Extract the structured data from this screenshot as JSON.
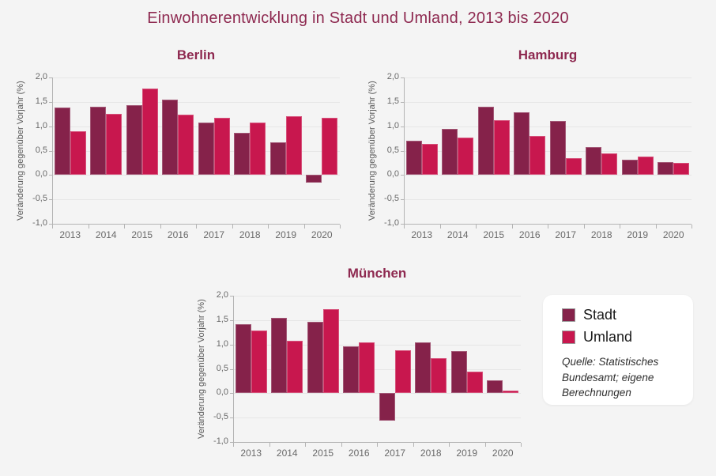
{
  "page": {
    "title": "Einwohnerentwicklung in Stadt und Umland, 2013 bis 2020",
    "background": "#f4f4f4"
  },
  "colors": {
    "stadt": "#85224A",
    "umland": "#C8174E",
    "heading": "#8E2950",
    "gridline": "#e6e6e6",
    "axis": "#b4b4b4",
    "tick_text": "#696969"
  },
  "axis": {
    "ylabel": "Veränderung gegenüber Vorjahr (%)",
    "yticks": [
      "2,0",
      "1,5",
      "1,0",
      "0,5",
      "0,0",
      "-0,5",
      "-1,0"
    ],
    "ytick_values": [
      2.0,
      1.5,
      1.0,
      0.5,
      0.0,
      -0.5,
      -1.0
    ],
    "ylim": [
      -1.0,
      2.0
    ]
  },
  "legend": {
    "items": [
      {
        "label": "Stadt",
        "color": "#85224A"
      },
      {
        "label": "Umland",
        "color": "#C8174E"
      }
    ],
    "source_lines": [
      "Quelle: Statistisches",
      "Bundesamt; eigene",
      "Berechnungen"
    ]
  },
  "chart_data": [
    {
      "type": "bar",
      "title": "Berlin",
      "ylabel": "Veränderung gegenüber Vorjahr (%)",
      "ylim": [
        -1.0,
        2.0
      ],
      "grid": "on",
      "categories": [
        "2013",
        "2014",
        "2015",
        "2016",
        "2017",
        "2018",
        "2019",
        "2020"
      ],
      "series": [
        {
          "name": "Stadt",
          "values": [
            1.38,
            1.4,
            1.44,
            1.55,
            1.08,
            0.86,
            0.67,
            -0.16
          ]
        },
        {
          "name": "Umland",
          "values": [
            0.89,
            1.26,
            1.77,
            1.23,
            1.18,
            1.07,
            1.21,
            1.17
          ]
        }
      ]
    },
    {
      "type": "bar",
      "title": "Hamburg",
      "ylabel": "Veränderung gegenüber Vorjahr (%)",
      "ylim": [
        -1.0,
        2.0
      ],
      "grid": "on",
      "categories": [
        "2013",
        "2014",
        "2015",
        "2016",
        "2017",
        "2018",
        "2019",
        "2020"
      ],
      "series": [
        {
          "name": "Stadt",
          "values": [
            0.7,
            0.94,
            1.4,
            1.29,
            1.11,
            0.57,
            0.32,
            0.27
          ]
        },
        {
          "name": "Umland",
          "values": [
            0.63,
            0.77,
            1.12,
            0.8,
            0.34,
            0.44,
            0.38,
            0.25
          ]
        }
      ]
    },
    {
      "type": "bar",
      "title": "München",
      "ylabel": "Veränderung gegenüber Vorjahr (%)",
      "ylim": [
        -1.0,
        2.0
      ],
      "grid": "on",
      "categories": [
        "2013",
        "2014",
        "2015",
        "2016",
        "2017",
        "2018",
        "2019",
        "2020"
      ],
      "series": [
        {
          "name": "Stadt",
          "values": [
            1.41,
            1.54,
            1.46,
            0.96,
            -0.57,
            1.05,
            0.86,
            0.27
          ]
        },
        {
          "name": "Umland",
          "values": [
            1.28,
            1.08,
            1.72,
            1.05,
            0.88,
            0.72,
            0.45,
            0.05
          ]
        }
      ]
    }
  ]
}
